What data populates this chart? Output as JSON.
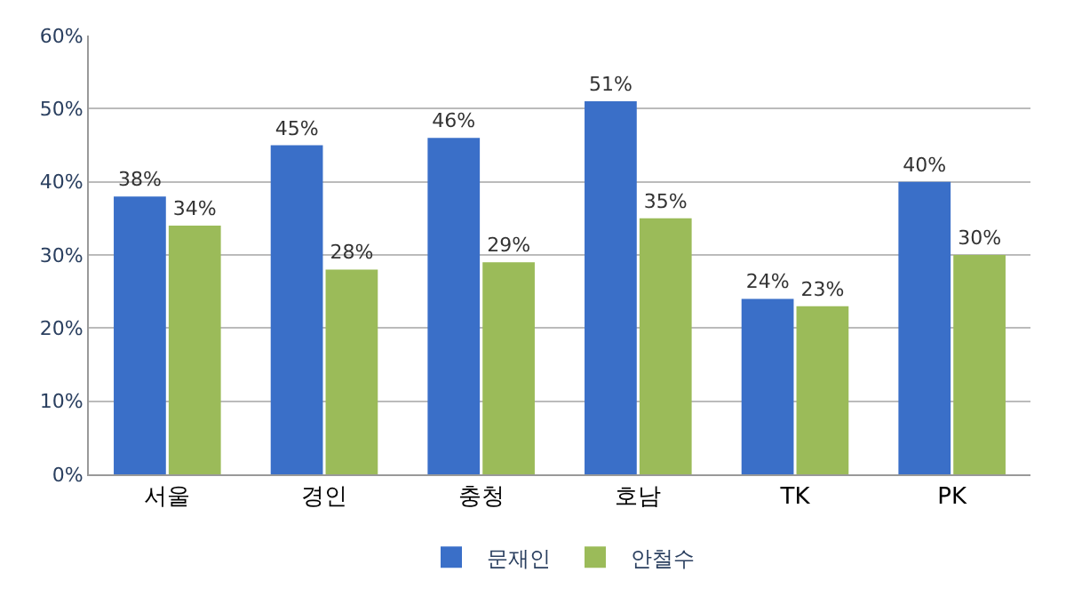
{
  "chart_data": {
    "type": "bar",
    "categories": [
      "서울",
      "경인",
      "충청",
      "호남",
      "TK",
      "PK"
    ],
    "series": [
      {
        "name": "문재인",
        "color": "#3a6fc8",
        "values": [
          38,
          45,
          46,
          51,
          24,
          40
        ],
        "value_labels": [
          "38%",
          "45%",
          "46%",
          "51%",
          "24%",
          "40%"
        ]
      },
      {
        "name": "안철수",
        "color": "#9bbb59",
        "values": [
          34,
          28,
          29,
          35,
          23,
          30
        ],
        "value_labels": [
          "34%",
          "28%",
          "29%",
          "35%",
          "23%",
          "30%"
        ]
      }
    ],
    "ylim": [
      0,
      60
    ],
    "yticks": [
      {
        "value": 0,
        "label": "0%"
      },
      {
        "value": 10,
        "label": "10%"
      },
      {
        "value": 20,
        "label": "20%"
      },
      {
        "value": 30,
        "label": "30%"
      },
      {
        "value": 40,
        "label": "40%"
      },
      {
        "value": 50,
        "label": "50%"
      },
      {
        "value": 60,
        "label": "60%"
      }
    ],
    "grid": "y",
    "legend": "bottom"
  }
}
